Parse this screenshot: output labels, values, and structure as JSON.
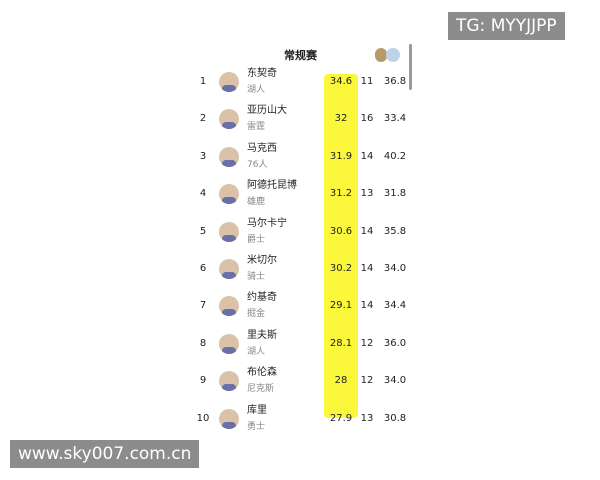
{
  "header": {
    "title": "常规赛"
  },
  "rows": [
    {
      "rank": "1",
      "name": "东契奇",
      "team": "湖人",
      "points": "34.6",
      "games": "11",
      "high": "36.8"
    },
    {
      "rank": "2",
      "name": "亚历山大",
      "team": "雷霆",
      "points": "32",
      "games": "16",
      "high": "33.4"
    },
    {
      "rank": "3",
      "name": "马克西",
      "team": "76人",
      "points": "31.9",
      "games": "14",
      "high": "40.2"
    },
    {
      "rank": "4",
      "name": "阿德托昆博",
      "team": "雄鹿",
      "points": "31.2",
      "games": "13",
      "high": "31.8"
    },
    {
      "rank": "5",
      "name": "马尔卡宁",
      "team": "爵士",
      "points": "30.6",
      "games": "14",
      "high": "35.8"
    },
    {
      "rank": "6",
      "name": "米切尔",
      "team": "骑士",
      "points": "30.2",
      "games": "14",
      "high": "34.0"
    },
    {
      "rank": "7",
      "name": "约基奇",
      "team": "掘金",
      "points": "29.1",
      "games": "14",
      "high": "34.4"
    },
    {
      "rank": "8",
      "name": "里夫斯",
      "team": "湖人",
      "points": "28.1",
      "games": "12",
      "high": "36.0"
    },
    {
      "rank": "9",
      "name": "布伦森",
      "team": "尼克斯",
      "points": "28",
      "games": "12",
      "high": "34.0"
    },
    {
      "rank": "10",
      "name": "库里",
      "team": "勇士",
      "points": "27.9",
      "games": "13",
      "high": "30.8"
    }
  ],
  "watermarks": {
    "top": "TG: MYYJJPP",
    "bottom": "www.sky007.com.cn"
  }
}
